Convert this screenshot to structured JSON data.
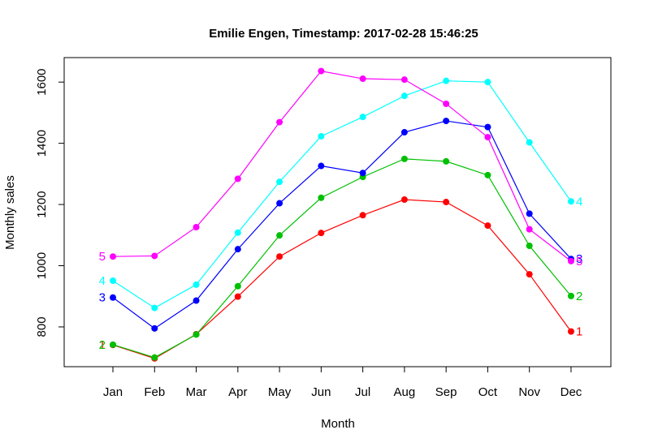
{
  "chart_data": {
    "type": "line",
    "title": "Emilie Engen, Timestamp: 2017-02-28 15:46:25",
    "xlabel": "Month",
    "ylabel": "Monthly sales",
    "categories": [
      "Jan",
      "Feb",
      "Mar",
      "Apr",
      "May",
      "Jun",
      "Jul",
      "Aug",
      "Sep",
      "Oct",
      "Nov",
      "Dec"
    ],
    "ylim": [
      670,
      1680
    ],
    "yticks": [
      800,
      1000,
      1200,
      1400,
      1600
    ],
    "grid": false,
    "legend": "none",
    "series": [
      {
        "label": "1",
        "color": "#ff0000",
        "values": [
          741,
          697,
          776,
          899,
          1030,
          1107,
          1165,
          1216,
          1208,
          1131,
          972,
          785
        ]
      },
      {
        "label": "2",
        "color": "#00c000",
        "values": [
          742,
          700,
          775,
          933,
          1099,
          1222,
          1290,
          1349,
          1341,
          1296,
          1065,
          901
        ]
      },
      {
        "label": "3",
        "color": "#0000ff",
        "values": [
          896,
          795,
          886,
          1054,
          1204,
          1326,
          1303,
          1436,
          1473,
          1453,
          1170,
          1022
        ]
      },
      {
        "label": "4",
        "color": "#00ffff",
        "values": [
          951,
          862,
          938,
          1108,
          1274,
          1423,
          1486,
          1555,
          1604,
          1600,
          1403,
          1210
        ]
      },
      {
        "label": "5",
        "color": "#ff00ff",
        "values": [
          1030,
          1032,
          1126,
          1284,
          1469,
          1636,
          1611,
          1608,
          1529,
          1420,
          1119,
          1015
        ]
      }
    ]
  }
}
